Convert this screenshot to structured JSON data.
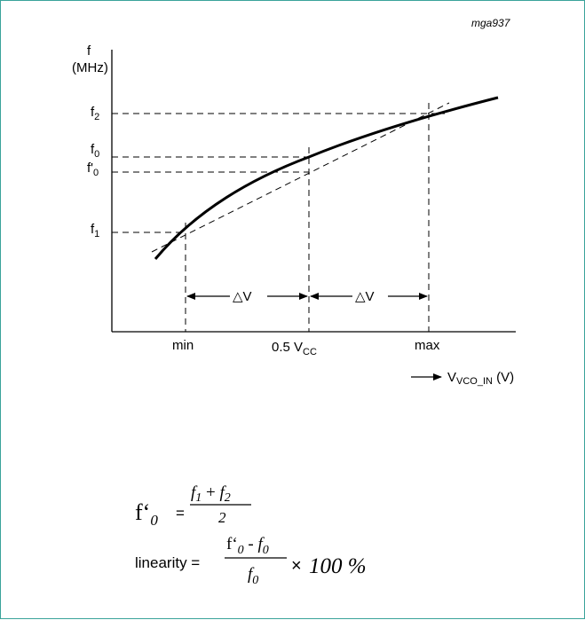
{
  "tag": "mga937",
  "y_axis": {
    "symbol": "f",
    "unit": "(MHz)"
  },
  "y_ticks": {
    "f2": {
      "base": "f",
      "sub": "2"
    },
    "f0": {
      "base": "f",
      "sub": "0"
    },
    "f0p": {
      "base": "f'",
      "sub": "0"
    },
    "f1": {
      "base": "f",
      "sub": "1"
    }
  },
  "x_ticks": {
    "min": "min",
    "mid_base": "0.5 V",
    "mid_sub": "CC",
    "max": "max"
  },
  "x_axis": {
    "arrow": "→",
    "base": "V",
    "sub": "VCO_IN",
    "unit": " (V)"
  },
  "delta_label": "△V",
  "formula1": {
    "lhs_base": "f‘",
    "lhs_sub": "0",
    "equals": "=",
    "num_a": "f",
    "num_a_sub": "1",
    "num_plus": " + ",
    "num_b": "f",
    "num_b_sub": "2",
    "den": "2"
  },
  "formula2": {
    "lhs": "linearity =",
    "num_a": "f‘",
    "num_a_sub": "0",
    "num_minus": " - ",
    "num_b": "f",
    "num_b_sub": "0",
    "den": "f",
    "den_sub": "0",
    "times": "×",
    "factor": "100 %"
  }
}
